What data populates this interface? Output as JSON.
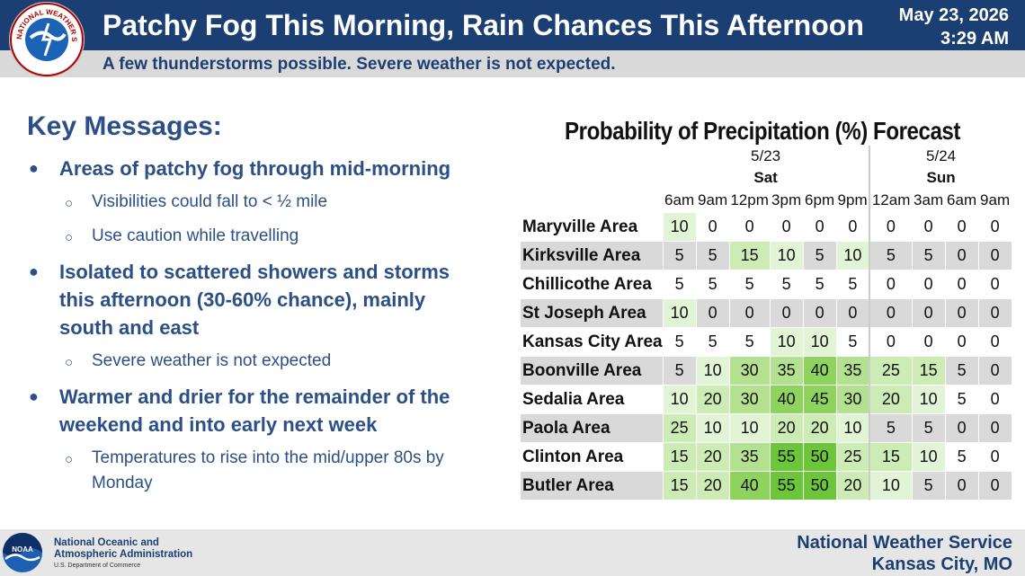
{
  "header": {
    "title": "Patchy Fog This Morning, Rain Chances This Afternoon",
    "subtitle": "A few thunderstorms possible. Severe weather is not expected.",
    "date": "May 23, 2026",
    "time": "3:29 AM",
    "logo_text": "NATIONAL WEATHER SERVICE"
  },
  "key_messages": {
    "title": "Key Messages:",
    "items": [
      {
        "text": "Areas of patchy fog through mid-morning",
        "sub": [
          "Visibilities could fall to < ½ mile",
          "Use caution while travelling"
        ]
      },
      {
        "text": "Isolated to scattered showers and storms this afternoon (30-60% chance), mainly south and east",
        "sub": [
          "Severe weather is not expected"
        ]
      },
      {
        "text": "Warmer and drier for the remainder of the weekend and into early next week",
        "sub": [
          "Temperatures to rise into the mid/upper 80s by Monday"
        ]
      }
    ]
  },
  "pop_table": {
    "title": "Probability of Precipitation (%) Forecast",
    "days": [
      {
        "date": "5/23",
        "day": "Sat",
        "times": [
          "6am",
          "9am",
          "12pm",
          "3pm",
          "6pm",
          "9pm"
        ]
      },
      {
        "date": "5/24",
        "day": "Sun",
        "times": [
          "12am",
          "3am",
          "6am",
          "9am"
        ]
      }
    ],
    "rows": [
      {
        "area": "Maryville Area",
        "values": [
          10,
          0,
          0,
          0,
          0,
          0,
          0,
          0,
          0,
          0
        ]
      },
      {
        "area": "Kirksville Area",
        "values": [
          5,
          5,
          15,
          10,
          5,
          10,
          5,
          5,
          0,
          0
        ]
      },
      {
        "area": "Chillicothe Area",
        "values": [
          5,
          5,
          5,
          5,
          5,
          5,
          0,
          0,
          0,
          0
        ]
      },
      {
        "area": "St Joseph Area",
        "values": [
          10,
          0,
          0,
          0,
          0,
          0,
          0,
          0,
          0,
          0
        ]
      },
      {
        "area": "Kansas City Area",
        "values": [
          5,
          5,
          5,
          10,
          10,
          5,
          0,
          0,
          0,
          0
        ]
      },
      {
        "area": "Boonville Area",
        "values": [
          5,
          10,
          30,
          35,
          40,
          35,
          25,
          15,
          5,
          0
        ]
      },
      {
        "area": "Sedalia Area",
        "values": [
          10,
          20,
          30,
          40,
          45,
          30,
          20,
          10,
          5,
          0
        ]
      },
      {
        "area": "Paola Area",
        "values": [
          25,
          10,
          10,
          20,
          20,
          10,
          5,
          5,
          0,
          0
        ]
      },
      {
        "area": "Clinton Area",
        "values": [
          15,
          20,
          35,
          55,
          50,
          25,
          15,
          10,
          5,
          0
        ]
      },
      {
        "area": "Butler Area",
        "values": [
          15,
          20,
          40,
          55,
          50,
          20,
          10,
          5,
          0,
          0
        ]
      }
    ]
  },
  "footer": {
    "noaa_name_line1": "National Oceanic and",
    "noaa_name_line2": "Atmospheric Administration",
    "noaa_dept": "U.S. Department of Commerce",
    "noaa_logo_text": "NOAA",
    "office_line1": "National Weather Service",
    "office_line2": "Kansas City, MO"
  },
  "colors": {
    "header_bg": "#1c3f73",
    "accent_text": "#2b4f86",
    "cell_zero": "#ffffff",
    "cell_even": "#d9d9d9",
    "scale": [
      "#f3f9ee",
      "#e2f4d6",
      "#cdebb5",
      "#b3e18f",
      "#8fd35f",
      "#6cc63a"
    ]
  }
}
